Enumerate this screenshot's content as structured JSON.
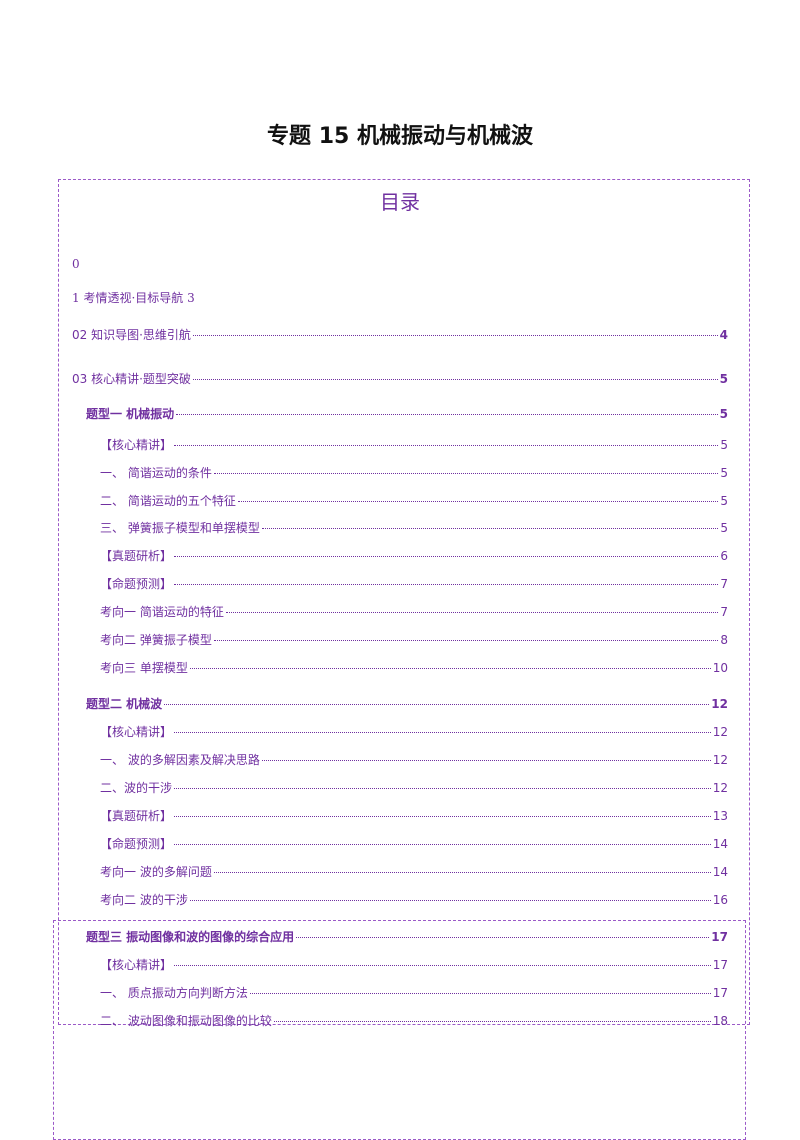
{
  "title": "专题 15  机械振动与机械波",
  "toc_heading": "目录",
  "plain_lines": [
    {
      "text": "0"
    },
    {
      "text": "1 考情透视·目标导航    3"
    }
  ],
  "entries": [
    {
      "text": "02 知识导图·思维引航",
      "page": "4"
    },
    {
      "text": "03 核心精讲·题型突破",
      "page": "5"
    },
    {
      "text": "题型一    机械振动",
      "page": "5"
    },
    {
      "text": "【核心精讲】",
      "page": "5"
    },
    {
      "text": "一、   简谐运动的条件",
      "page": "5"
    },
    {
      "text": "二、   简谐运动的五个特征",
      "page": "5"
    },
    {
      "text": "三、   弹簧振子模型和单摆模型",
      "page": "5"
    },
    {
      "text": "【真题研析】",
      "page": "6"
    },
    {
      "text": "【命题预测】",
      "page": "7"
    },
    {
      "text": "考向一  简谐运动的特征",
      "page": "7"
    },
    {
      "text": "考向二  弹簧振子模型",
      "page": "8"
    },
    {
      "text": "考向三  单摆模型",
      "page": "10"
    },
    {
      "text": "题型二  机械波",
      "page": "12"
    },
    {
      "text": "【核心精讲】",
      "page": "12"
    },
    {
      "text": "一、   波的多解因素及解决思路",
      "page": "12"
    },
    {
      "text": "二、波的干涉",
      "page": "12"
    },
    {
      "text": "【真题研析】",
      "page": "13"
    },
    {
      "text": "【命题预测】",
      "page": "14"
    },
    {
      "text": "考向一  波的多解问题",
      "page": "14"
    },
    {
      "text": "考向二  波的干涉",
      "page": "16"
    },
    {
      "text": "题型三  振动图像和波的图像的综合应用",
      "page": "17"
    },
    {
      "text": "【核心精讲】",
      "page": "17"
    },
    {
      "text": "一、   质点振动方向判断方法",
      "page": "17"
    },
    {
      "text": "二、   波动图像和振动图像的比较",
      "page": "18"
    }
  ]
}
